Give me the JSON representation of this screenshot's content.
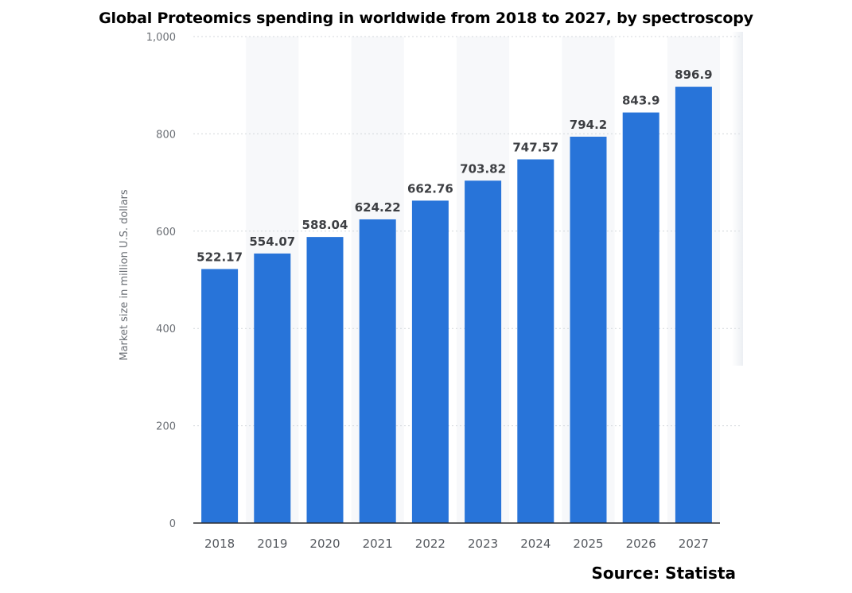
{
  "chart_data": {
    "type": "bar",
    "title": "Global Proteomics spending in worldwide from 2018 to 2027, by spectroscopy",
    "xlabel": "",
    "ylabel": "Market size in million U.S. dollars",
    "ylim": [
      0,
      1000
    ],
    "yticks": [
      "0",
      "200",
      "400",
      "600",
      "800",
      "1,000"
    ],
    "ytick_values": [
      0,
      200,
      400,
      600,
      800,
      1000
    ],
    "categories": [
      "2018",
      "2019",
      "2020",
      "2021",
      "2022",
      "2023",
      "2024",
      "2025",
      "2026",
      "2027"
    ],
    "values": [
      522.17,
      554.07,
      588.04,
      624.22,
      662.76,
      703.82,
      747.57,
      794.2,
      843.9,
      896.9
    ],
    "data_labels": [
      "522.17",
      "554.07",
      "588.04",
      "624.22",
      "662.76",
      "703.82",
      "747.57",
      "794.2",
      "843.9",
      "896.9"
    ],
    "bar_color": "#2874d9",
    "grid": true,
    "legend": "none",
    "source": "Source: Statista"
  }
}
